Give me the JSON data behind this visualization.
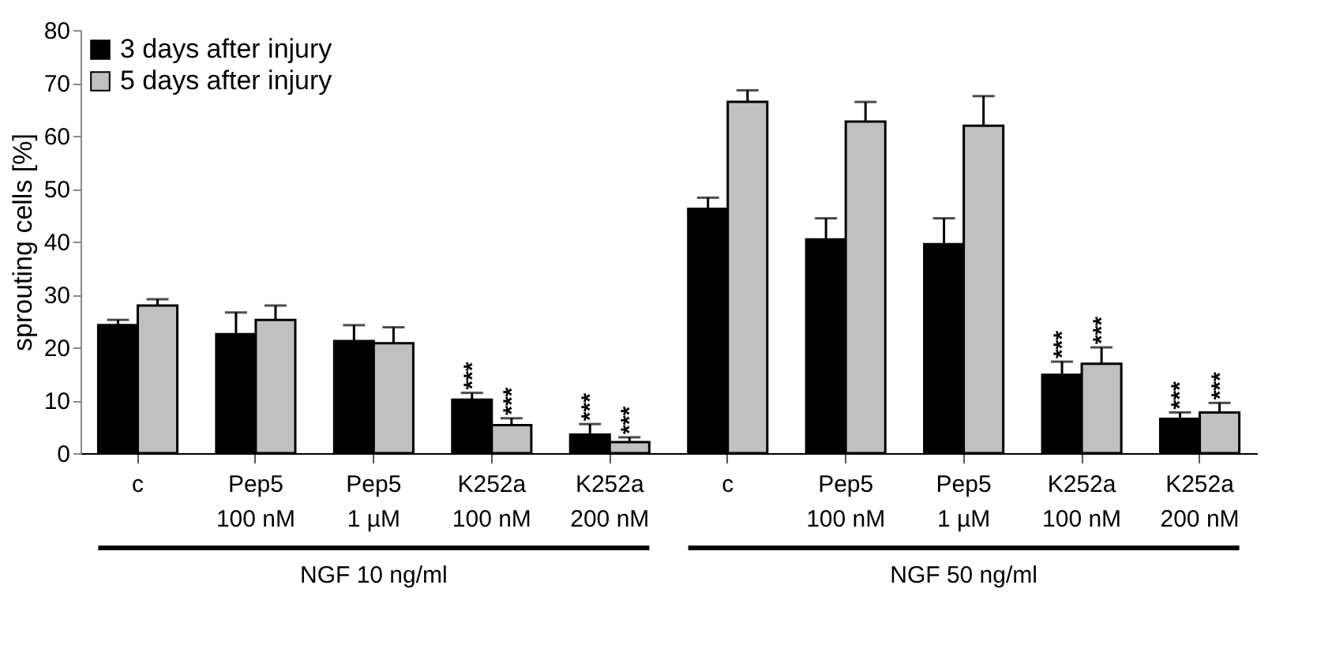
{
  "chart_data": {
    "type": "bar",
    "ylabel": "sprouting cells [%]",
    "categories": [
      "c",
      "Pep5\n100 nM",
      "Pep5\n1 µM",
      "K252a\n100 nM",
      "K252a\n200 nM",
      "c",
      "Pep5\n100 nM",
      "Pep5\n1 µM",
      "K252a\n100 nM",
      "K252a\n200 nM"
    ],
    "series": [
      {
        "name": "3 days after injury",
        "color": "#000000",
        "values": [
          24.2,
          22.5,
          21.2,
          10.1,
          3.5,
          46.2,
          40.4,
          39.5,
          14.8,
          6.5
        ],
        "errors": [
          [
            24.2,
            25.2
          ],
          [
            22.5,
            26.6
          ],
          [
            21.2,
            24.2
          ],
          [
            10.1,
            11.4
          ],
          [
            3.5,
            5.5
          ],
          [
            46.2,
            48.3
          ],
          [
            40.4,
            44.4
          ],
          [
            39.5,
            44.4
          ],
          [
            14.8,
            17.3
          ],
          [
            6.5,
            7.7
          ]
        ]
      },
      {
        "name": "5 days after injury",
        "color": "#c0c0c0",
        "values": [
          27.9,
          25.2,
          20.8,
          5.3,
          2.1,
          66.4,
          62.7,
          61.9,
          16.9,
          7.7
        ],
        "errors": [
          [
            27.9,
            29.1
          ],
          [
            25.2,
            27.9
          ],
          [
            20.8,
            23.8
          ],
          [
            5.3,
            6.6
          ],
          [
            2.1,
            3.0
          ],
          [
            66.4,
            68.6
          ],
          [
            62.7,
            66.4
          ],
          [
            61.9,
            67.5
          ],
          [
            16.9,
            20.0
          ],
          [
            7.7,
            9.5
          ]
        ]
      }
    ],
    "annotations": [
      "NGF 10 ng/ml",
      "NGF 50 ng/ml",
      {
        "text": "***",
        "x": "K252a\n100 nM",
        "y": 10.1
      },
      {
        "text": "***",
        "x": "K252a\n100 nM",
        "y": 5.3
      },
      {
        "text": "***",
        "x": "K252a\n200 nM",
        "y": 3.5
      },
      {
        "text": "***",
        "x": "K252a\n200 nM",
        "y": 2.1
      },
      {
        "text": "***",
        "y": 6.5
      },
      {
        "text": "***",
        "y": 7.7
      },
      {
        "text": "***",
        "y": 14.8
      },
      {
        "text": "***",
        "y": 16.9
      }
    ],
    "ylim": [
      0,
      80
    ],
    "yticks": [
      0,
      10,
      20,
      30,
      40,
      50,
      60,
      70,
      80
    ],
    "grid": false,
    "legend": "top left"
  }
}
